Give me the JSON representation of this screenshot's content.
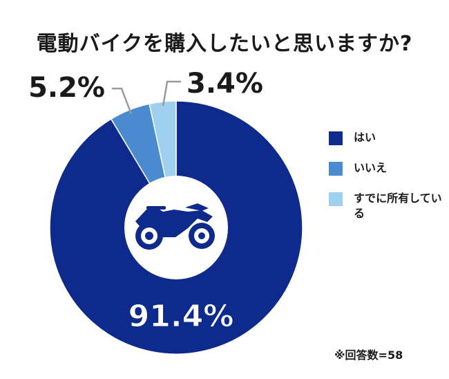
{
  "chart_data": {
    "type": "pie",
    "title": "電動バイクを購入したいと思いますか?",
    "slices": [
      {
        "label": "はい",
        "value": 91.4,
        "display": "91.4%",
        "color": "#0d2a8c"
      },
      {
        "label": "いいえ",
        "value": 5.2,
        "display": "5.2%",
        "color": "#4a8bcf"
      },
      {
        "label": "すでに所有している",
        "value": 3.4,
        "display": "3.4%",
        "color": "#9fd0f0"
      }
    ],
    "legend_placement": "right",
    "donut": true,
    "center_icon": "motorcycle-icon"
  },
  "note": "※回答数=58"
}
